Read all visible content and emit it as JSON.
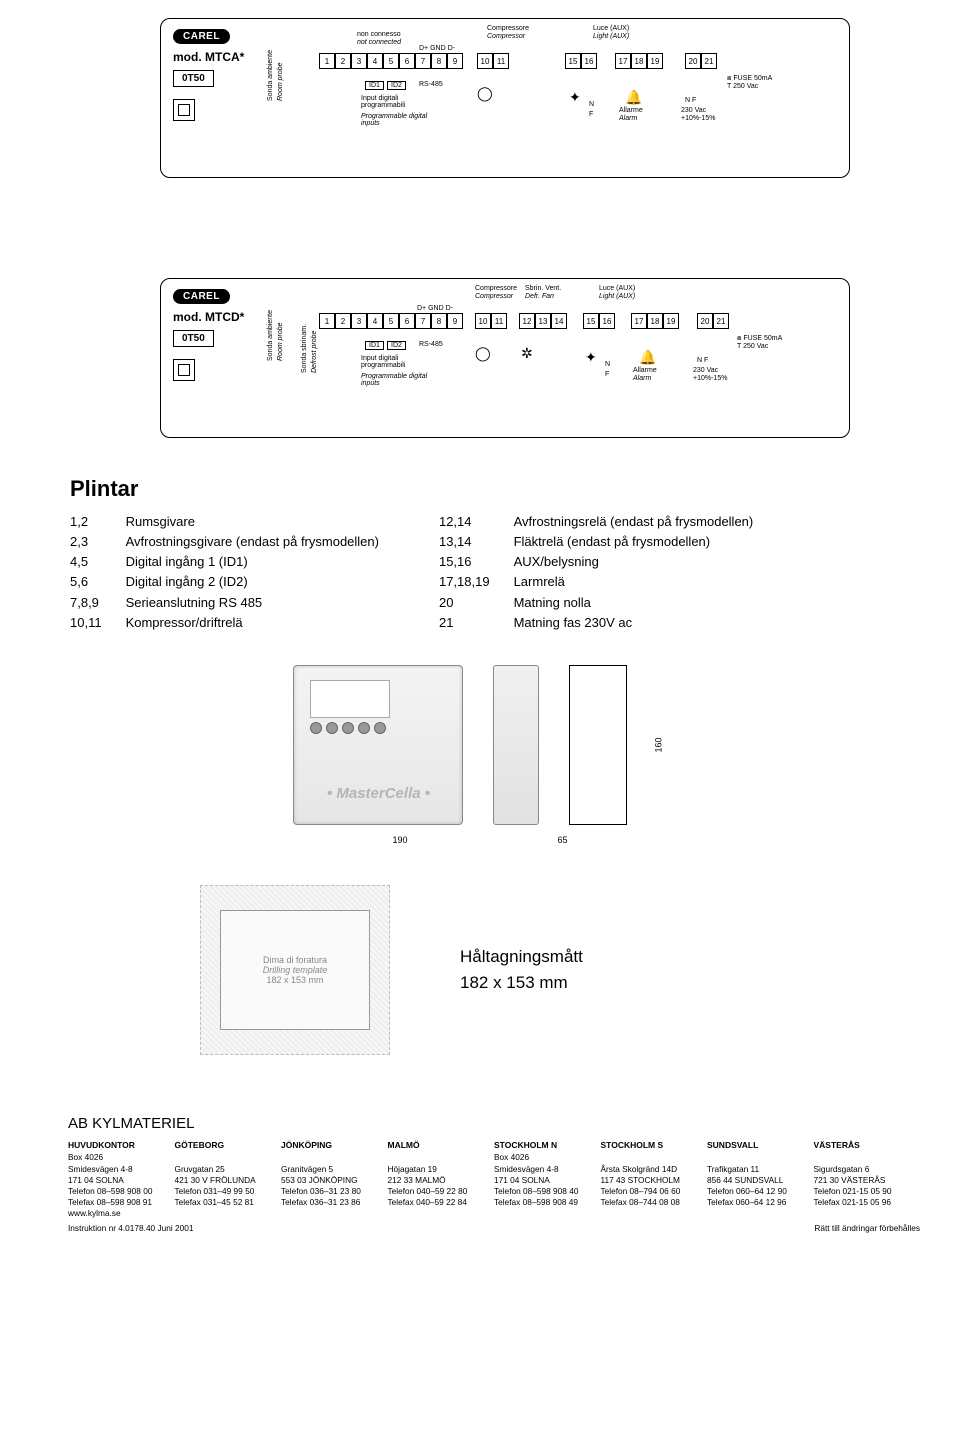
{
  "diagrams": [
    {
      "brand": "CAREL",
      "model": "mod. MTCA*",
      "code": "0T50",
      "terminals_a": [
        "1",
        "2",
        "3",
        "4",
        "5",
        "6",
        "7",
        "8",
        "9"
      ],
      "terminals_b": [
        "10",
        "11"
      ],
      "terminals_c": [
        "15",
        "16"
      ],
      "terminals_d": [
        "17",
        "18",
        "19"
      ],
      "terminals_e": [
        "20",
        "21"
      ],
      "top_labels": {
        "non_connesso": "non connesso",
        "not_connected": "not connected",
        "compressore": "Compressore",
        "compressor": "Compressor",
        "luce": "Luce (AUX)",
        "light": "Light (AUX)",
        "dplus": "D+ GND D-"
      },
      "bottom_labels": {
        "sonda": "Sonda ambiente",
        "probe": "Room probe",
        "id1": "ID1",
        "id2": "ID2",
        "rs485": "RS-485",
        "input_it": "Input digitali programmabili",
        "input_en": "Programmable digital inputs",
        "allarme": "Allarme",
        "alarm": "Alarm",
        "nf": "N  F",
        "vac": "230 Vac",
        "tol": "+10%-15%",
        "fuse": "FUSE 50mA T 250 Vac"
      }
    },
    {
      "brand": "CAREL",
      "model": "mod. MTCD*",
      "code": "0T50",
      "terminals_a": [
        "1",
        "2",
        "3",
        "4",
        "5",
        "6",
        "7",
        "8",
        "9"
      ],
      "terminals_b": [
        "10",
        "11"
      ],
      "terminals_b2": [
        "12",
        "13",
        "14"
      ],
      "terminals_c": [
        "15",
        "16"
      ],
      "terminals_d": [
        "17",
        "18",
        "19"
      ],
      "terminals_e": [
        "20",
        "21"
      ],
      "top_labels": {
        "compressore": "Compressore",
        "compressor": "Compressor",
        "sbrin": "Sbrin. Vent.",
        "defr": "Defr.  Fan",
        "luce": "Luce (AUX)",
        "light": "Light (AUX)",
        "dplus": "D+ GND D-"
      },
      "bottom_labels": {
        "sonda": "Sonda ambiente",
        "probe": "Room probe",
        "sonda2": "Sonda sbrinam.",
        "probe2": "Defrost probe",
        "id1": "ID1",
        "id2": "ID2",
        "rs485": "RS-485",
        "input_it": "Input digitali programmabili",
        "input_en": "Programmable digital inputs",
        "allarme": "Allarme",
        "alarm": "Alarm",
        "nf": "N  F",
        "vac": "230 Vac",
        "tol": "+10%-15%",
        "fuse": "FUSE 50mA T 250 Vac"
      }
    }
  ],
  "plintar": {
    "heading": "Plintar",
    "left": [
      {
        "n": "1,2",
        "l": "Rumsgivare"
      },
      {
        "n": "2,3",
        "l": "Avfrostningsgivare (endast på frysmodellen)"
      },
      {
        "n": "4,5",
        "l": "Digital ingång 1 (ID1)"
      },
      {
        "n": "5,6",
        "l": "Digital ingång 2 (ID2)"
      },
      {
        "n": "7,8,9",
        "l": "Serieanslutning RS 485"
      },
      {
        "n": "10,11",
        "l": "Kompressor/driftrelä"
      }
    ],
    "right": [
      {
        "n": "12,14",
        "l": "Avfrostningsrelä (endast på frysmodellen)"
      },
      {
        "n": "13,14",
        "l": "Fläktrelä (endast på frysmodellen)"
      },
      {
        "n": "15,16",
        "l": "AUX/belysning"
      },
      {
        "n": "17,18,19",
        "l": "Larmrelä"
      },
      {
        "n": "20",
        "l": "Matning nolla"
      },
      {
        "n": "21",
        "l": "Matning fas 230V ac"
      }
    ]
  },
  "product": {
    "mc_label": "MasterCella",
    "dim_w": "190",
    "dim_d": "65",
    "dim_h": "160"
  },
  "drill": {
    "inner_it": "Dima di foratura",
    "inner_en": "Drilling template",
    "inner_dim": "182 x 153 mm",
    "title": "Håltagningsmått",
    "size": "182 x 153 mm"
  },
  "footer": {
    "company": "AB KYLMATERIEL",
    "offices": [
      {
        "title": "HUVUDKONTOR",
        "lines": [
          "Box 4026",
          "Smidesvägen 4-8",
          "171 04  SOLNA",
          "Telefon 08–598 908 00",
          "Telefax 08–598 908 91",
          "www.kylma.se"
        ]
      },
      {
        "title": "GÖTEBORG",
        "lines": [
          "",
          "Gruvgatan 25",
          "421 30 V FRÖLUNDA",
          "Telefon 031–49 99 50",
          "Telefax 031–45 52 81",
          ""
        ]
      },
      {
        "title": "JÖNKÖPING",
        "lines": [
          "",
          "Granitvägen 5",
          "553 03  JÖNKÖPING",
          "Telefon 036–31 23 80",
          "Telefax 036–31 23 86",
          ""
        ]
      },
      {
        "title": "MALMÖ",
        "lines": [
          "",
          "Höjagatan 19",
          "212 33  MALMÖ",
          "Telefon 040–59 22 80",
          "Telefax 040–59 22 84",
          ""
        ]
      },
      {
        "title": "STOCKHOLM N",
        "lines": [
          "Box 4026",
          "Smidesvägen 4-8",
          "171 04  SOLNA",
          "Telefon 08–598 908 40",
          "Telefax 08–598 908 49",
          ""
        ]
      },
      {
        "title": "STOCKHOLM S",
        "lines": [
          "",
          "Årsta Skolgränd 14D",
          "117 43  STOCKHOLM",
          "Telefon 08–794 06 60",
          "Telefax 08–744 08 08",
          ""
        ]
      },
      {
        "title": "SUNDSVALL",
        "lines": [
          "",
          "Trafikgatan 11",
          "856 44  SUNDSVALL",
          "Telefon 060–64 12 90",
          "Telefax 060–64 12 96",
          ""
        ]
      },
      {
        "title": "VÄSTERÅS",
        "lines": [
          "",
          "Sigurdsgatan 6",
          "721 30  VÄSTERÅS",
          "Telefon 021-15 05 90",
          "Telefax 021-15 05 96",
          ""
        ]
      }
    ],
    "instr": "Instruktion  nr 4.0178.40   Juni  2001",
    "right": "Rätt till ändringar förbehålles"
  }
}
